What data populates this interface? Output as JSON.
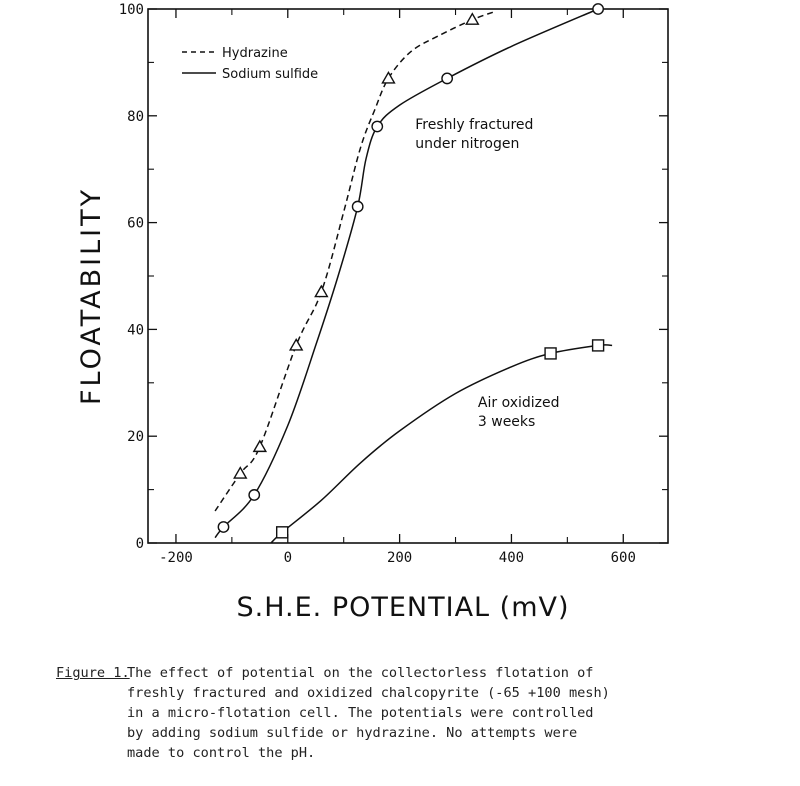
{
  "chart_data": {
    "type": "line",
    "xlabel": "S.H.E. POTENTIAL (mV)",
    "ylabel": "FLOATABILITY",
    "xlim": [
      -250,
      680
    ],
    "ylim": [
      0,
      100
    ],
    "x_ticks": [
      -200,
      0,
      200,
      400,
      600
    ],
    "y_ticks": [
      0,
      20,
      40,
      60,
      80,
      100
    ],
    "y_tick_labels": [
      "0",
      "20",
      "40",
      "60",
      "80",
      "100"
    ],
    "legend": {
      "position": "top-left",
      "entries": [
        "Hydrazine",
        "Sodium sulfide"
      ]
    },
    "series": [
      {
        "name": "Hydrazine",
        "style": "dashed",
        "marker": "triangle",
        "color": "#111111",
        "points": [
          [
            -85,
            13
          ],
          [
            -50,
            18
          ],
          [
            15,
            37
          ],
          [
            60,
            47
          ],
          [
            180,
            87
          ],
          [
            330,
            98
          ]
        ],
        "curve": [
          [
            -130,
            6
          ],
          [
            -85,
            13
          ],
          [
            -50,
            18
          ],
          [
            15,
            37
          ],
          [
            60,
            47
          ],
          [
            100,
            62
          ],
          [
            130,
            74
          ],
          [
            155,
            81
          ],
          [
            180,
            87
          ],
          [
            220,
            92
          ],
          [
            270,
            95
          ],
          [
            330,
            98
          ],
          [
            370,
            99.5
          ]
        ]
      },
      {
        "name": "Sodium sulfide",
        "style": "solid",
        "marker": "circle",
        "color": "#111111",
        "points": [
          [
            -115,
            3
          ],
          [
            -60,
            9
          ],
          [
            125,
            63
          ],
          [
            160,
            78
          ],
          [
            285,
            87
          ],
          [
            555,
            100
          ]
        ],
        "curve": [
          [
            -130,
            1
          ],
          [
            -115,
            3
          ],
          [
            -60,
            9
          ],
          [
            0,
            22
          ],
          [
            50,
            37
          ],
          [
            90,
            50
          ],
          [
            125,
            63
          ],
          [
            140,
            72
          ],
          [
            160,
            78
          ],
          [
            200,
            82
          ],
          [
            285,
            87
          ],
          [
            400,
            93
          ],
          [
            555,
            100
          ]
        ]
      },
      {
        "name": "Air oxidized 3 weeks",
        "style": "solid",
        "marker": "square",
        "color": "#111111",
        "points": [
          [
            -10,
            2
          ],
          [
            470,
            35.5
          ],
          [
            555,
            37
          ]
        ],
        "curve": [
          [
            -30,
            0
          ],
          [
            -10,
            2
          ],
          [
            60,
            8
          ],
          [
            130,
            15
          ],
          [
            200,
            21
          ],
          [
            300,
            28
          ],
          [
            400,
            33
          ],
          [
            470,
            35.5
          ],
          [
            555,
            37
          ],
          [
            580,
            37
          ]
        ]
      }
    ],
    "annotations": [
      {
        "lines": [
          "Freshly fractured",
          "under nitrogen"
        ],
        "x": 228,
        "y": 77.5
      },
      {
        "lines": [
          "Air oxidized",
          "3 weeks"
        ],
        "x": 340,
        "y": 25.5
      }
    ]
  },
  "caption": {
    "label": "Figure 1.",
    "text": "The effect of potential on the collectorless flotation of\nfreshly fractured and oxidized chalcopyrite (-65 +100 mesh)\nin a micro-flotation cell.  The potentials were controlled\nby adding sodium sulfide or hydrazine.  No attempts were\nmade to control the pH."
  }
}
